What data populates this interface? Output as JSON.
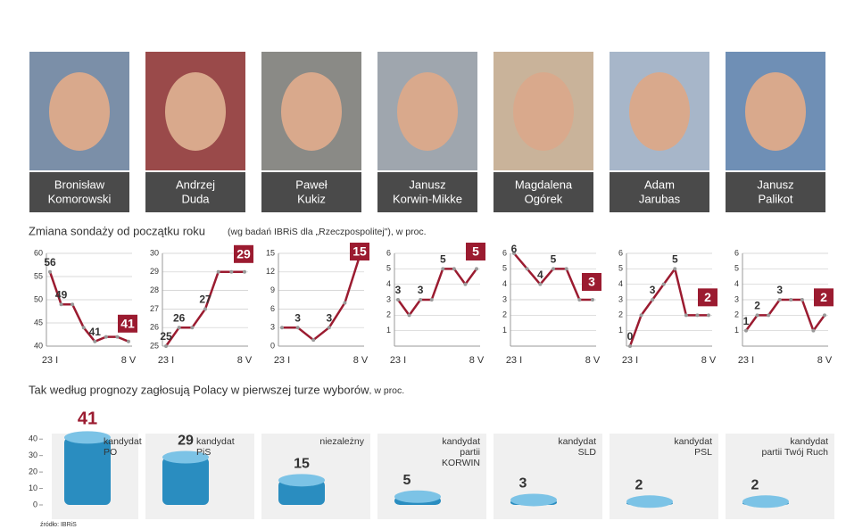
{
  "candidates": [
    [
      "Bronisław",
      "Komorowski"
    ],
    [
      "Andrzej",
      "Duda"
    ],
    [
      "Paweł",
      "Kukiz"
    ],
    [
      "Janusz",
      "Korwin-Mikke"
    ],
    [
      "Magdalena",
      "Ogórek"
    ],
    [
      "Adam",
      "Jarubas"
    ],
    [
      "Janusz",
      "Palikot"
    ]
  ],
  "trend_title": "Zmiana sondaży od początku roku",
  "trend_subtitle": "(wg badań IBRiS dla „Rzeczpospolitej\"), w proc.",
  "chart_data": [
    {
      "type": "line",
      "color": "#9b1b30",
      "categories": [
        "23 I",
        null,
        null,
        null,
        null,
        null,
        null,
        "8 V"
      ],
      "values": [
        56,
        49,
        49,
        44,
        41,
        42,
        42,
        41
      ],
      "value_labels": [
        "56",
        "49",
        null,
        null,
        "41",
        null,
        null,
        "41"
      ],
      "ylim": [
        40,
        60
      ],
      "yticks": [
        40,
        45,
        50,
        55,
        60
      ]
    },
    {
      "type": "line",
      "color": "#9b1b30",
      "categories": [
        "23 I",
        null,
        null,
        null,
        null,
        null,
        "8 V"
      ],
      "values": [
        25,
        26,
        26,
        27,
        29,
        29,
        29
      ],
      "value_labels": [
        "25",
        "26",
        null,
        "27",
        null,
        null,
        "29"
      ],
      "ylim": [
        25,
        30
      ],
      "yticks": [
        25,
        26,
        27,
        28,
        29,
        30
      ]
    },
    {
      "type": "line",
      "color": "#9b1b30",
      "categories": [
        "23 I",
        null,
        null,
        null,
        null,
        "8 V"
      ],
      "values": [
        3,
        3,
        1,
        3,
        7,
        15
      ],
      "value_labels": [
        null,
        "3",
        null,
        "3",
        null,
        "15"
      ],
      "ylim": [
        0,
        15
      ],
      "yticks": [
        0,
        3,
        6,
        9,
        12,
        15
      ]
    },
    {
      "type": "line",
      "color": "#9b1b30",
      "categories": [
        "23 I",
        null,
        null,
        null,
        null,
        null,
        null,
        "8 V"
      ],
      "values": [
        3,
        2,
        3,
        3,
        5,
        5,
        4,
        5
      ],
      "value_labels": [
        "3",
        null,
        "3",
        null,
        "5",
        null,
        null,
        "5"
      ],
      "ylim": [
        0,
        6
      ],
      "yticks": [
        1,
        2,
        3,
        4,
        5,
        6
      ]
    },
    {
      "type": "line",
      "color": "#9b1b30",
      "categories": [
        "23 I",
        null,
        null,
        null,
        null,
        null,
        "8 V"
      ],
      "values": [
        6,
        5,
        4,
        5,
        5,
        3,
        3
      ],
      "value_labels": [
        "6",
        null,
        "4",
        "5",
        null,
        null,
        "3"
      ],
      "ylim": [
        0,
        6
      ],
      "yticks": [
        1,
        2,
        3,
        4,
        5,
        6
      ]
    },
    {
      "type": "line",
      "color": "#9b1b30",
      "categories": [
        "23 I",
        null,
        null,
        null,
        null,
        null,
        null,
        "8 V"
      ],
      "values": [
        0,
        2,
        3,
        4,
        5,
        2,
        2,
        2
      ],
      "value_labels": [
        "0",
        null,
        "3",
        null,
        "5",
        null,
        null,
        "2"
      ],
      "ylim": [
        0,
        6
      ],
      "yticks": [
        1,
        2,
        3,
        4,
        5,
        6
      ]
    },
    {
      "type": "line",
      "color": "#9b1b30",
      "categories": [
        "23 I",
        null,
        null,
        null,
        null,
        null,
        null,
        "8 V"
      ],
      "values": [
        1,
        2,
        2,
        3,
        3,
        3,
        1,
        2
      ],
      "value_labels": [
        "1",
        "2",
        null,
        "3",
        null,
        null,
        null,
        "2"
      ],
      "ylim": [
        0,
        6
      ],
      "yticks": [
        1,
        2,
        3,
        4,
        5,
        6
      ]
    },
    {
      "type": "bar",
      "title": "Tak według prognozy zagłosują Polacy w pierwszej turze wyborów",
      "subtitle": ", w proc.",
      "color": "#2a8dc0",
      "categories": [
        [
          "kandydat",
          "PO"
        ],
        [
          "kandydat",
          "PiS"
        ],
        [
          "niezależny"
        ],
        [
          "kandydat",
          "partii",
          "KORWIN"
        ],
        [
          "kandydat",
          "SLD"
        ],
        [
          "kandydat",
          "PSL"
        ],
        [
          "kandydat",
          "partii Twój Ruch"
        ]
      ],
      "values": [
        41,
        29,
        15,
        5,
        3,
        2,
        2
      ],
      "ylim": [
        0,
        45
      ],
      "yticks": [
        0,
        10,
        20,
        30,
        40
      ],
      "source": "źródło: IBRiS"
    }
  ]
}
